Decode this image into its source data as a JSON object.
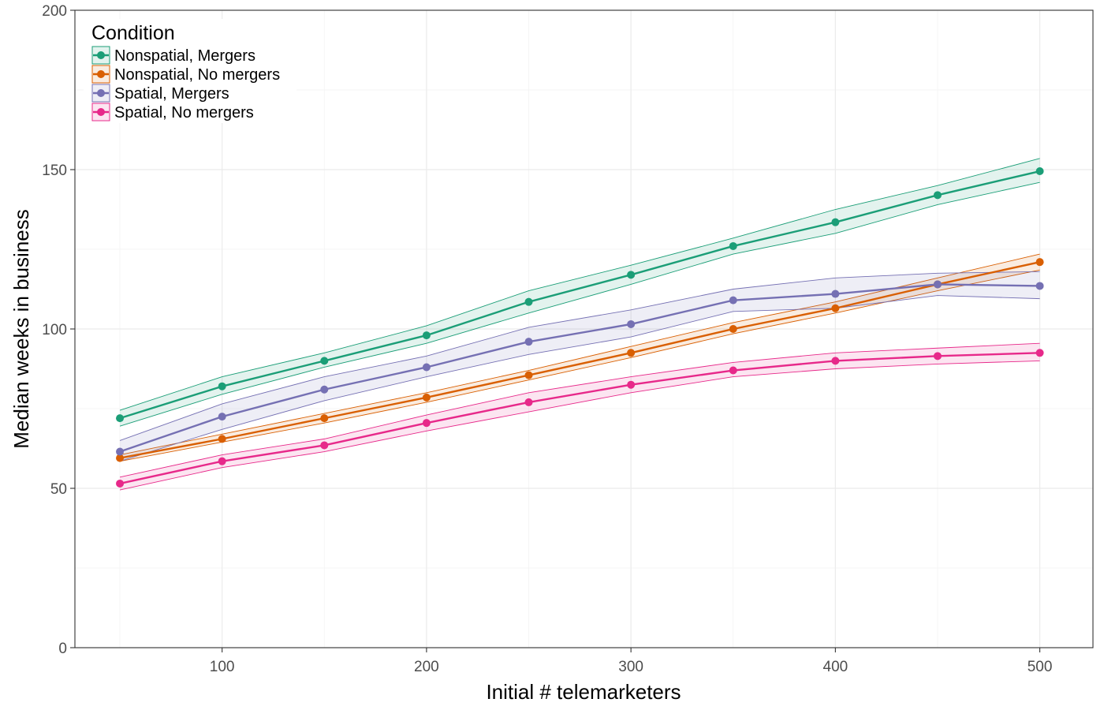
{
  "chart_data": {
    "type": "line",
    "title": "",
    "xlabel": "Initial # telemarketers",
    "ylabel": "Median weeks in business",
    "xlim": [
      28,
      526
    ],
    "ylim": [
      0,
      200
    ],
    "x_ticks": [
      100,
      200,
      300,
      400,
      500
    ],
    "y_ticks": [
      0,
      50,
      100,
      150,
      200
    ],
    "grid": true,
    "legend": {
      "title": "Condition",
      "placement": "top-left"
    },
    "x": [
      50,
      100,
      150,
      200,
      250,
      300,
      350,
      400,
      450,
      500
    ],
    "series": [
      {
        "name": "Nonspatial, Mergers",
        "color": "#1b9e77",
        "values": [
          72,
          82,
          90,
          98,
          108.5,
          117,
          126,
          133.5,
          142,
          149.5
        ],
        "lower": [
          69.5,
          79.5,
          88,
          95.5,
          105,
          114,
          123.5,
          130,
          139,
          146
        ],
        "upper": [
          74.5,
          85,
          92.5,
          101,
          112,
          120,
          128.5,
          137.5,
          145,
          153.5
        ]
      },
      {
        "name": "Nonspatial, No mergers",
        "color": "#d95f02",
        "values": [
          59.5,
          65.5,
          72,
          78.5,
          85.5,
          92.5,
          100,
          106.5,
          114,
          121
        ],
        "lower": [
          58.5,
          64.5,
          70.5,
          77,
          84,
          91,
          98.5,
          105,
          112,
          118.5
        ],
        "upper": [
          60.5,
          67,
          73.5,
          80,
          87,
          94.5,
          102,
          108.5,
          116,
          123.5
        ]
      },
      {
        "name": "Spatial, Mergers",
        "color": "#7570b3",
        "values": [
          61.5,
          72.5,
          81,
          88,
          96,
          101.5,
          109,
          111,
          114,
          113.5
        ],
        "lower": [
          58.5,
          68.5,
          77.5,
          85,
          92,
          97.5,
          105.5,
          106.5,
          110.5,
          109.5
        ],
        "upper": [
          65,
          76.5,
          85,
          91.5,
          100.5,
          106,
          112.5,
          116,
          117.5,
          118
        ]
      },
      {
        "name": "Spatial, No mergers",
        "color": "#e7298a",
        "values": [
          51.5,
          58.5,
          63.5,
          70.5,
          77,
          82.5,
          87,
          90,
          91.5,
          92.5
        ],
        "lower": [
          49.5,
          56.5,
          61.5,
          68,
          74,
          80,
          85,
          87.5,
          89,
          90
        ],
        "upper": [
          53.5,
          60.5,
          65.5,
          73,
          80,
          85,
          89.5,
          92.5,
          94,
          95.5
        ]
      }
    ]
  }
}
